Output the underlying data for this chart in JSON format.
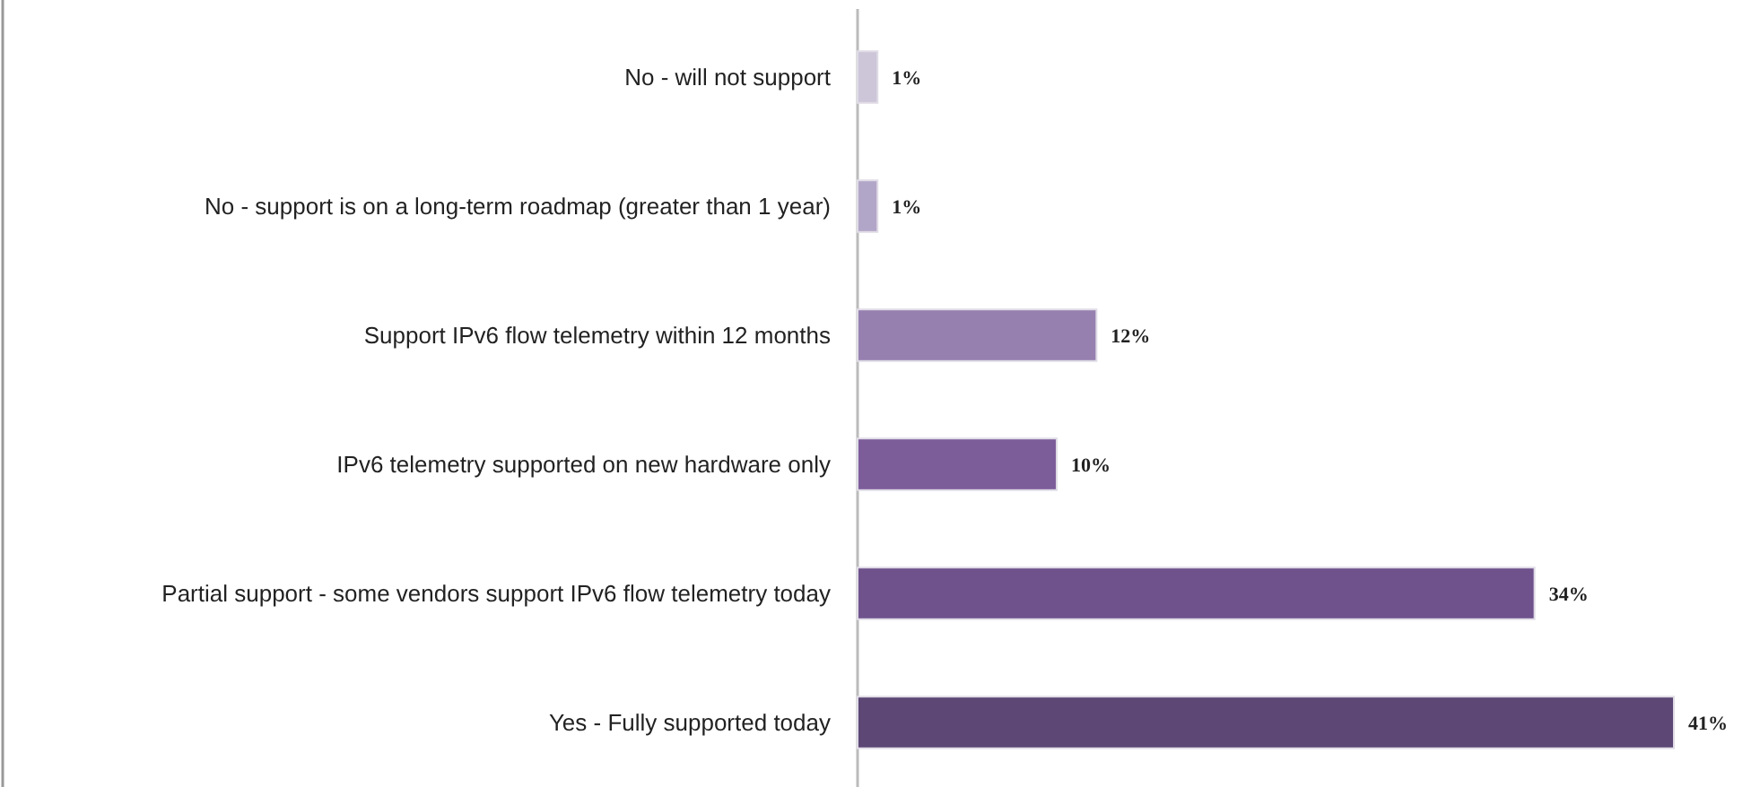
{
  "chart_data": {
    "type": "bar",
    "orientation": "horizontal",
    "categories": [
      "No - will not support",
      "No - support is on a long-term roadmap (greater than 1 year)",
      "Support IPv6 flow telemetry within 12 months",
      "IPv6 telemetry supported on new hardware only",
      "Partial support - some vendors support IPv6 flow telemetry today",
      "Yes - Fully supported today"
    ],
    "values": [
      1,
      1,
      12,
      10,
      34,
      41
    ],
    "value_labels": [
      "1%",
      "1%",
      "12%",
      "10%",
      "34%",
      "41%"
    ],
    "colors": [
      "#ccc6d8",
      "#b2a6c8",
      "#9680b0",
      "#7d5c9a",
      "#6f528c",
      "#5c4775"
    ]
  }
}
